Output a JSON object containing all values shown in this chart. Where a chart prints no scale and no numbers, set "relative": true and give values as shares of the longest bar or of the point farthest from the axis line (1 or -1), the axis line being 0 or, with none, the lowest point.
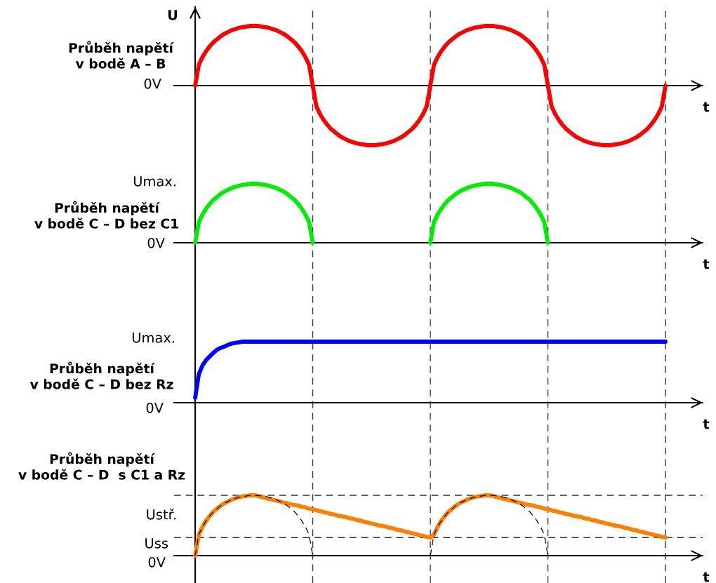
{
  "chart_data": [
    {
      "type": "line",
      "relative": true,
      "title": "Průběh napětí\nv bodě A – B",
      "ylabel": "U",
      "xlabel": "t",
      "annotations": [
        "0V"
      ],
      "categories": [
        null,
        null,
        null,
        null,
        null,
        null,
        null,
        null,
        null,
        null,
        null,
        null,
        null,
        null,
        null,
        null,
        null,
        null,
        null,
        null,
        null,
        null,
        null,
        null,
        null,
        null,
        null,
        null,
        null,
        null,
        null,
        null,
        null,
        null,
        null,
        null,
        null,
        null,
        null,
        null,
        null,
        null,
        null,
        null,
        null,
        null,
        null,
        null,
        null,
        null,
        null,
        null,
        null,
        null,
        null,
        null,
        null,
        null,
        null,
        null,
        null,
        null,
        null,
        null,
        null,
        null,
        null,
        null,
        null,
        null,
        null,
        null,
        null,
        null,
        null,
        null,
        null,
        null,
        null,
        null,
        null,
        null,
        null,
        null,
        null,
        null,
        null,
        null,
        null,
        null,
        null,
        null,
        null,
        null,
        null,
        null,
        null,
        null,
        null,
        null,
        null,
        null,
        null,
        null,
        null,
        null,
        null,
        null,
        null,
        null,
        null,
        null,
        null,
        null,
        null,
        null,
        null,
        null,
        null,
        null,
        null,
        null,
        null,
        null,
        null,
        null,
        null,
        null,
        null
      ],
      "series": [
        {
          "color": "#ff0000",
          "values": [
            0,
            0.35,
            0.48,
            0.58,
            0.66,
            0.73,
            0.78,
            0.83,
            0.87,
            0.9,
            0.93,
            0.95,
            0.97,
            0.98,
            0.99,
            1,
            1,
            1,
            0.99,
            0.98,
            0.97,
            0.95,
            0.93,
            0.9,
            0.87,
            0.83,
            0.78,
            0.73,
            0.66,
            0.58,
            0.48,
            0.35,
            0,
            -0.35,
            -0.48,
            -0.58,
            -0.66,
            -0.73,
            -0.78,
            -0.83,
            -0.87,
            -0.9,
            -0.93,
            -0.95,
            -0.97,
            -0.98,
            -0.99,
            -1,
            -1,
            -1,
            -0.99,
            -0.98,
            -0.97,
            -0.95,
            -0.93,
            -0.9,
            -0.87,
            -0.83,
            -0.78,
            -0.73,
            -0.66,
            -0.58,
            -0.48,
            -0.35,
            0,
            0.35,
            0.48,
            0.58,
            0.66,
            0.73,
            0.78,
            0.83,
            0.87,
            0.9,
            0.93,
            0.95,
            0.97,
            0.98,
            0.99,
            1,
            1,
            1,
            0.99,
            0.98,
            0.97,
            0.95,
            0.93,
            0.9,
            0.87,
            0.83,
            0.78,
            0.73,
            0.66,
            0.58,
            0.48,
            0.35,
            0,
            -0.35,
            -0.48,
            -0.58,
            -0.66,
            -0.73,
            -0.78,
            -0.83,
            -0.87,
            -0.9,
            -0.93,
            -0.95,
            -0.97,
            -0.98,
            -0.99,
            -1,
            -1,
            -1,
            -0.99,
            -0.98,
            -0.97,
            -0.95,
            -0.93,
            -0.9,
            -0.87,
            -0.83,
            -0.78,
            -0.73,
            -0.66,
            -0.58,
            -0.48,
            -0.35,
            0
          ]
        }
      ]
    },
    {
      "type": "line",
      "relative": true,
      "title": "Průběh napětí\nv bodě C – D bez C1",
      "xlabel": "t",
      "annotations": [
        "0V",
        "Umax."
      ],
      "categories": [
        null,
        null,
        null,
        null,
        null,
        null,
        null,
        null,
        null,
        null,
        null,
        null,
        null,
        null,
        null,
        null,
        null,
        null,
        null,
        null,
        null,
        null,
        null,
        null,
        null,
        null,
        null,
        null,
        null,
        null,
        null,
        null,
        null,
        null,
        null,
        null,
        null,
        null,
        null,
        null,
        null,
        null,
        null,
        null,
        null,
        null,
        null,
        null,
        null,
        null,
        null,
        null,
        null,
        null,
        null,
        null,
        null,
        null,
        null,
        null,
        null,
        null,
        null,
        null,
        null,
        null,
        null,
        null,
        null,
        null,
        null,
        null,
        null,
        null,
        null,
        null,
        null,
        null,
        null,
        null,
        null,
        null,
        null,
        null,
        null,
        null,
        null,
        null,
        null,
        null,
        null,
        null,
        null,
        null,
        null,
        null,
        null,
        null,
        null,
        null,
        null,
        null,
        null,
        null,
        null,
        null,
        null,
        null,
        null,
        null,
        null,
        null,
        null,
        null,
        null,
        null,
        null,
        null,
        null,
        null,
        null,
        null,
        null,
        null,
        null,
        null,
        null,
        null,
        null
      ],
      "series": [
        {
          "color": "#00ee00",
          "values": [
            0,
            0.35,
            0.48,
            0.58,
            0.66,
            0.73,
            0.78,
            0.83,
            0.87,
            0.9,
            0.93,
            0.95,
            0.97,
            0.98,
            0.99,
            1,
            1,
            1,
            0.99,
            0.98,
            0.97,
            0.95,
            0.93,
            0.9,
            0.87,
            0.83,
            0.78,
            0.73,
            0.66,
            0.58,
            0.48,
            0.35,
            0,
            null,
            null,
            null,
            null,
            null,
            null,
            null,
            null,
            null,
            null,
            null,
            null,
            null,
            null,
            null,
            null,
            null,
            null,
            null,
            null,
            null,
            null,
            null,
            null,
            null,
            null,
            null,
            null,
            null,
            null,
            null,
            0,
            0.35,
            0.48,
            0.58,
            0.66,
            0.73,
            0.78,
            0.83,
            0.87,
            0.9,
            0.93,
            0.95,
            0.97,
            0.98,
            0.99,
            1,
            1,
            1,
            0.99,
            0.98,
            0.97,
            0.95,
            0.93,
            0.9,
            0.87,
            0.83,
            0.78,
            0.73,
            0.66,
            0.58,
            0.48,
            0.35,
            0,
            null,
            null,
            null,
            null,
            null,
            null,
            null,
            null,
            null,
            null,
            null,
            null,
            null,
            null,
            null,
            null,
            null,
            null,
            null,
            null,
            null,
            null,
            null,
            null,
            null,
            null,
            null,
            null,
            null,
            null,
            null,
            null
          ]
        }
      ]
    },
    {
      "type": "line",
      "relative": true,
      "title": "Průběh napětí\nv bodě C – D bez Rz",
      "xlabel": "t",
      "annotations": [
        "0V",
        "Umax."
      ],
      "categories": [
        null,
        null,
        null,
        null,
        null,
        null,
        null,
        null,
        null,
        null,
        null,
        null,
        null,
        null,
        null,
        null,
        null,
        null,
        null,
        null,
        null,
        null,
        null,
        null,
        null,
        null,
        null,
        null,
        null,
        null,
        null,
        null,
        null,
        null,
        null,
        null,
        null,
        null,
        null,
        null,
        null,
        null,
        null,
        null,
        null,
        null,
        null,
        null,
        null,
        null,
        null,
        null,
        null,
        null,
        null,
        null,
        null,
        null,
        null,
        null,
        null,
        null,
        null,
        null,
        null,
        null,
        null,
        null,
        null,
        null,
        null,
        null,
        null,
        null,
        null,
        null,
        null,
        null,
        null,
        null,
        null,
        null,
        null,
        null,
        null,
        null,
        null,
        null,
        null,
        null,
        null,
        null,
        null,
        null,
        null,
        null,
        null,
        null,
        null,
        null,
        null,
        null,
        null,
        null,
        null,
        null,
        null,
        null,
        null,
        null,
        null,
        null,
        null,
        null,
        null,
        null,
        null,
        null,
        null,
        null,
        null,
        null,
        null,
        null,
        null,
        null,
        null,
        null,
        null
      ],
      "series": [
        {
          "color": "#0000ff",
          "values": [
            0.08,
            0.47,
            0.61,
            0.7,
            0.76,
            0.82,
            0.87,
            0.9,
            0.92,
            0.95,
            0.97,
            0.98,
            0.99,
            1,
            1,
            1,
            1,
            1,
            1,
            1,
            1,
            1,
            1,
            1,
            1,
            1,
            1,
            1,
            1,
            1,
            1,
            1,
            1,
            1,
            1,
            1,
            1,
            1,
            1,
            1,
            1,
            1,
            1,
            1,
            1,
            1,
            1,
            1,
            1,
            1,
            1,
            1,
            1,
            1,
            1,
            1,
            1,
            1,
            1,
            1,
            1,
            1,
            1,
            1,
            1,
            1,
            1,
            1,
            1,
            1,
            1,
            1,
            1,
            1,
            1,
            1,
            1,
            1,
            1,
            1,
            1,
            1,
            1,
            1,
            1,
            1,
            1,
            1,
            1,
            1,
            1,
            1,
            1,
            1,
            1,
            1,
            1,
            1,
            1,
            1,
            1,
            1,
            1,
            1,
            1,
            1,
            1,
            1,
            1,
            1,
            1,
            1,
            1,
            1,
            1,
            1,
            1,
            1,
            1,
            1,
            1,
            1,
            1,
            1,
            1,
            1,
            1,
            1,
            1
          ]
        }
      ]
    },
    {
      "type": "line",
      "relative": true,
      "title": "Průběh napětí\nv bodě C – D  s C1 a Rz",
      "xlabel": "t",
      "annotations": [
        "0V",
        "Uss",
        "Ustř."
      ],
      "categories": [
        null,
        null,
        null,
        null,
        null,
        null,
        null,
        null,
        null,
        null,
        null,
        null,
        null,
        null,
        null,
        null,
        null,
        null,
        null,
        null,
        null,
        null,
        null,
        null,
        null,
        null,
        null,
        null,
        null,
        null,
        null,
        null,
        null,
        null,
        null,
        null,
        null,
        null,
        null,
        null,
        null,
        null,
        null,
        null,
        null,
        null,
        null,
        null,
        null,
        null,
        null,
        null,
        null,
        null,
        null,
        null,
        null,
        null,
        null,
        null,
        null,
        null,
        null,
        null,
        null,
        null,
        null,
        null,
        null,
        null,
        null,
        null,
        null,
        null,
        null,
        null,
        null,
        null,
        null,
        null,
        null,
        null,
        null,
        null,
        null,
        null,
        null,
        null,
        null,
        null,
        null,
        null,
        null,
        null,
        null,
        null,
        null,
        null,
        null,
        null,
        null,
        null,
        null,
        null,
        null,
        null,
        null,
        null,
        null,
        null,
        null,
        null,
        null,
        null,
        null,
        null,
        null,
        null,
        null,
        null,
        null,
        null,
        null,
        null,
        null,
        null,
        null,
        null,
        null
      ],
      "series": [
        {
          "color": "#ff7f00",
          "values": [
            0,
            0.35,
            0.48,
            0.58,
            0.66,
            0.73,
            0.78,
            0.83,
            0.87,
            0.9,
            0.93,
            0.95,
            0.97,
            0.98,
            0.99,
            1,
            1,
            0.99,
            0.97,
            0.96,
            0.94,
            0.93,
            0.91,
            0.9,
            0.88,
            0.87,
            0.85,
            0.84,
            0.83,
            0.81,
            0.8,
            0.78,
            0.77,
            0.75,
            0.74,
            0.72,
            0.71,
            0.69,
            0.68,
            0.66,
            0.65,
            0.64,
            0.62,
            0.61,
            0.59,
            0.58,
            0.56,
            0.55,
            0.53,
            0.52,
            0.5,
            0.49,
            0.48,
            0.46,
            0.45,
            0.43,
            0.42,
            0.4,
            0.39,
            0.37,
            0.36,
            0.34,
            0.33,
            0.31,
            0.3,
            0.35,
            0.48,
            0.58,
            0.66,
            0.73,
            0.78,
            0.83,
            0.87,
            0.9,
            0.93,
            0.95,
            0.97,
            0.98,
            0.99,
            1,
            1,
            0.99,
            0.97,
            0.96,
            0.94,
            0.93,
            0.91,
            0.9,
            0.88,
            0.87,
            0.85,
            0.84,
            0.83,
            0.81,
            0.8,
            0.78,
            0.77,
            0.75,
            0.74,
            0.72,
            0.71,
            0.69,
            0.68,
            0.66,
            0.65,
            0.64,
            0.62,
            0.61,
            0.59,
            0.58,
            0.56,
            0.55,
            0.53,
            0.52,
            0.5,
            0.49,
            0.48,
            0.46,
            0.45,
            0.43,
            0.42,
            0.4,
            0.39,
            0.37,
            0.36,
            0.34,
            0.33,
            0.31,
            0.3
          ]
        },
        {
          "color": "#000000",
          "line_style": "dashed",
          "values": [
            0,
            0.35,
            0.48,
            0.58,
            0.66,
            0.73,
            0.78,
            0.83,
            0.87,
            0.9,
            0.93,
            0.95,
            0.97,
            0.98,
            0.99,
            1,
            1,
            1,
            0.99,
            0.98,
            0.97,
            0.95,
            0.93,
            0.9,
            0.87,
            0.83,
            0.78,
            0.73,
            0.66,
            0.58,
            0.48,
            0.35,
            0,
            null,
            null,
            null,
            null,
            null,
            null,
            null,
            null,
            null,
            null,
            null,
            null,
            null,
            null,
            null,
            null,
            null,
            null,
            null,
            null,
            null,
            null,
            null,
            null,
            null,
            null,
            null,
            null,
            null,
            null,
            null,
            0,
            0.35,
            0.48,
            0.58,
            0.66,
            0.73,
            0.78,
            0.83,
            0.87,
            0.9,
            0.93,
            0.95,
            0.97,
            0.98,
            0.99,
            1,
            1,
            1,
            0.99,
            0.98,
            0.97,
            0.95,
            0.93,
            0.9,
            0.87,
            0.83,
            0.78,
            0.73,
            0.66,
            0.58,
            0.48,
            0.35,
            0,
            null,
            null,
            null,
            null,
            null,
            null,
            null,
            null,
            null,
            null,
            null,
            null,
            null,
            null,
            null,
            null,
            null,
            null,
            null,
            null,
            null,
            null,
            null,
            null,
            null,
            null,
            null,
            null,
            null,
            null,
            null,
            null
          ]
        }
      ]
    }
  ]
}
